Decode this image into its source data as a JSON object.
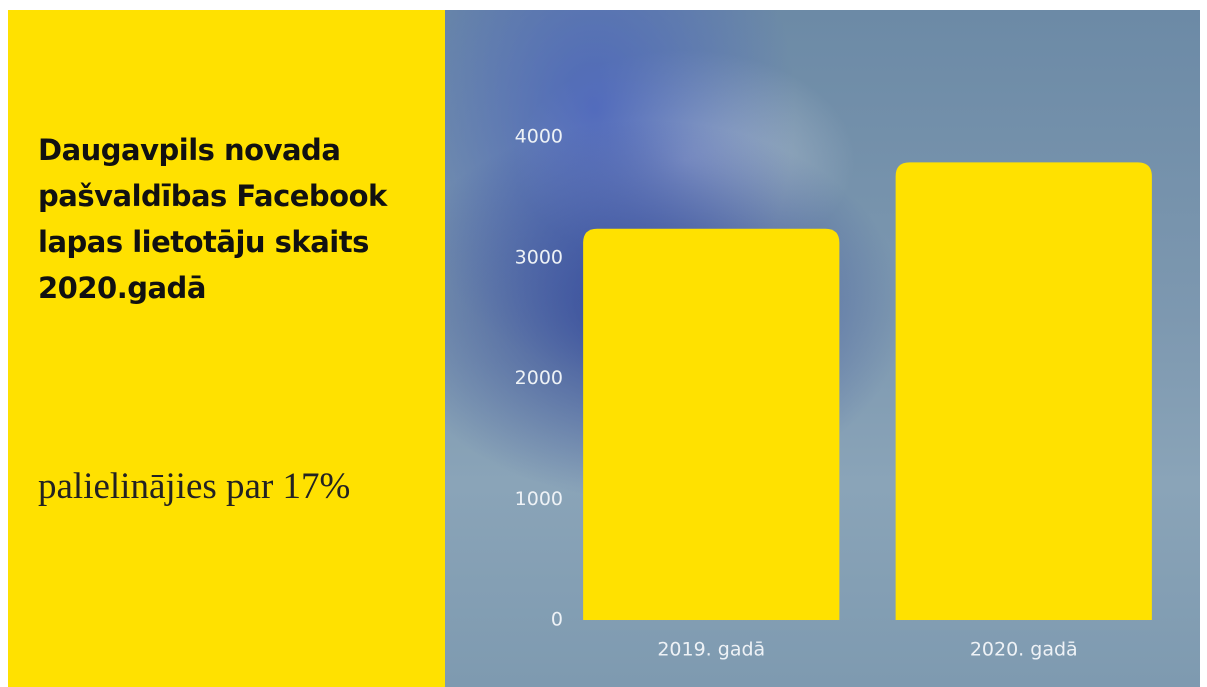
{
  "chart_data": {
    "type": "bar",
    "title": "Daugavpils novada pašvaldības Facebook lapas lietotāju skaits 2020.gadā",
    "subtitle": "palielinājies par 17%",
    "categories": [
      "2019. gadā",
      "2020. gadā"
    ],
    "values": [
      3240,
      3790
    ],
    "color": "#ffe100",
    "ylim": [
      0,
      4000
    ],
    "yticks": [
      0,
      1000,
      2000,
      3000,
      4000
    ],
    "grid": false
  }
}
